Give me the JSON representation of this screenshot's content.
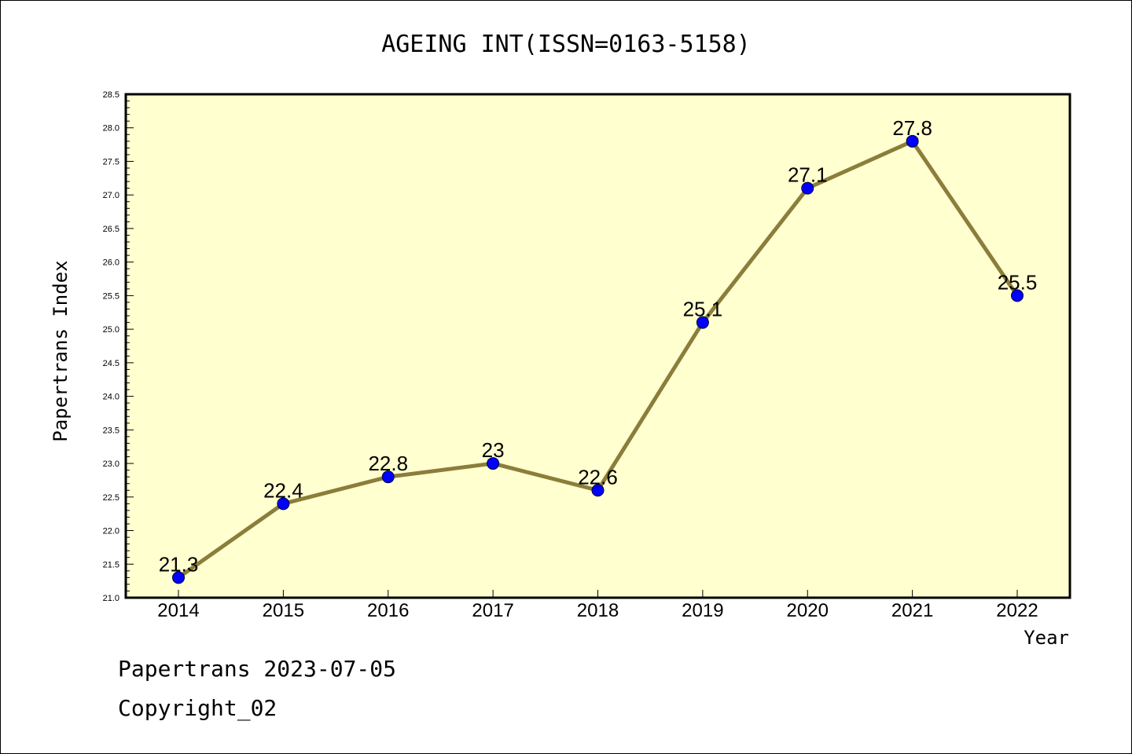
{
  "chart_data": {
    "type": "line",
    "title": "AGEING INT(ISSN=0163-5158)",
    "xlabel": "Year",
    "ylabel": "Papertrans Index",
    "categories": [
      "2014",
      "2015",
      "2016",
      "2017",
      "2018",
      "2019",
      "2020",
      "2021",
      "2022"
    ],
    "values": [
      21.3,
      22.4,
      22.8,
      23,
      22.6,
      25.1,
      27.1,
      27.8,
      25.5
    ],
    "data_labels": [
      "21.3",
      "22.4",
      "22.8",
      "23",
      "22.6",
      "25.1",
      "27.1",
      "27.8",
      "25.5"
    ],
    "ylim": [
      21.0,
      28.5
    ],
    "yticks": [
      "21.0",
      "21.5",
      "22.0",
      "22.5",
      "23.0",
      "23.5",
      "24.0",
      "24.5",
      "25.0",
      "25.5",
      "26.0",
      "26.5",
      "27.0",
      "27.5",
      "28.0",
      "28.5"
    ],
    "grid": false,
    "colors": {
      "plot_background": "#ffffd0",
      "line": "#8b7d3a",
      "marker": "#0000ff"
    }
  },
  "footer": {
    "line1": "Papertrans 2023-07-05",
    "line2": "Copyright_02"
  }
}
